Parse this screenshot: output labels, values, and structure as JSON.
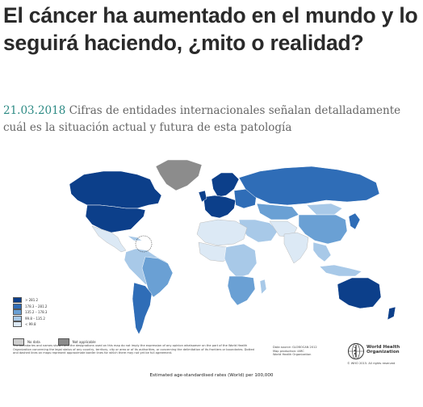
{
  "article": {
    "title": "El cáncer ha aumentado en el mundo y lo seguirá haciendo, ¿mito o realidad?",
    "date": "21.03.2018",
    "subtitle": "Cifras de entidades internacionales señalan detalladamente cuál es la situación actual y futura de esta patología"
  },
  "map": {
    "legend": [
      {
        "label": "> 281.2",
        "color": "#0c3f8a"
      },
      {
        "label": "178.3 – 281.2",
        "color": "#2f6db7"
      },
      {
        "label": "135.2 – 178.3",
        "color": "#6aa0d4"
      },
      {
        "label": "99.8 – 135.2",
        "color": "#a8c9e8"
      },
      {
        "label": "< 99.8",
        "color": "#dce9f5"
      }
    ],
    "no_data": {
      "label": "No data",
      "color": "#cfcfcf"
    },
    "not_applicable": {
      "label": "Not applicable",
      "color": "#8c8c8c"
    },
    "disclaimer": "The boundaries and names shown and the designations used on this map do not imply the expression of any opinion whatsoever on the part of the World Health Organization concerning the legal status of any country, territory, city or area or of its authorities, or concerning the delimitation of its frontiers or boundaries. Dotted and dashed lines on maps represent approximate border lines for which there may not yet be full agreement.",
    "source_lines": [
      "Data source: GLOBOCAN 2012",
      "Map production: IARC",
      "World Health Organization"
    ],
    "org_name": "World Health Organization",
    "copyright": "© WHO 2015. All rights reserved",
    "caption": "Estimated age-standardised rates (World) per 100,000",
    "ocean_color": "#ffffff"
  }
}
